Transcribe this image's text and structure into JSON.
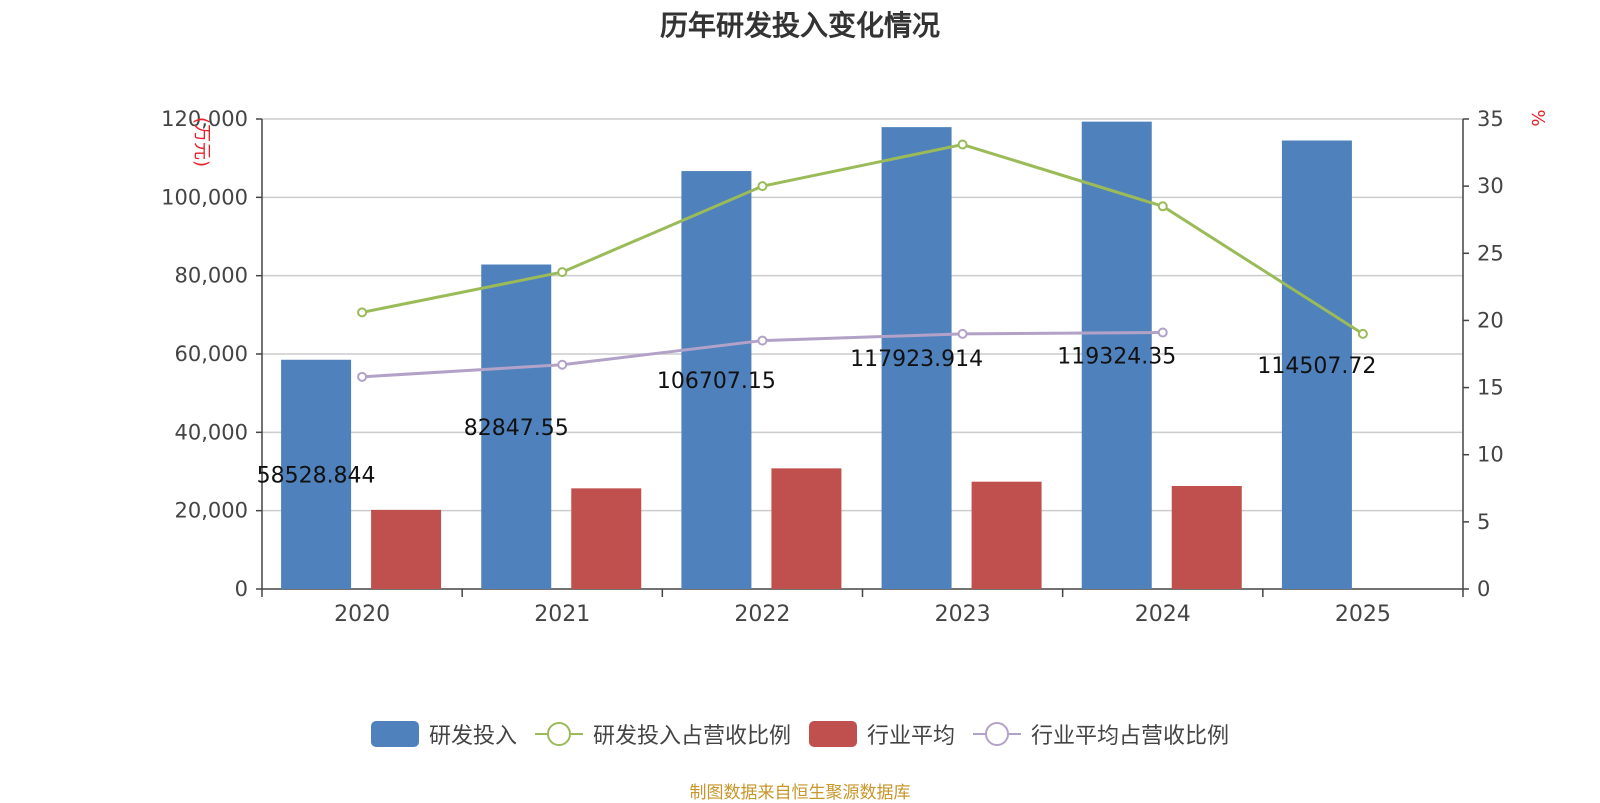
{
  "chart_data": {
    "type": "bar",
    "title": "历年研发投入变化情况",
    "categories": [
      "2020",
      "2021",
      "2022",
      "2023",
      "2024",
      "2025"
    ],
    "left_axis": {
      "unit": "(万元)",
      "ylim": [
        0,
        120000
      ],
      "ticks": [
        "0",
        "20,000",
        "40,000",
        "60,000",
        "80,000",
        "100,000",
        "120,000"
      ]
    },
    "right_axis": {
      "unit": "%",
      "ylim": [
        0,
        35
      ],
      "ticks": [
        "0",
        "5",
        "10",
        "15",
        "20",
        "25",
        "30",
        "35"
      ]
    },
    "series": [
      {
        "name": "研发投入",
        "type": "bar",
        "axis": "left",
        "color": "#4f81bd",
        "values": [
          58528.844,
          82847.55,
          106707.15,
          117923.914,
          119324.35,
          114507.72
        ],
        "labels": [
          "58528.844",
          "82847.55",
          "106707.15",
          "117923.914",
          "119324.35",
          "114507.72"
        ]
      },
      {
        "name": "研发投入占营收比例",
        "type": "line",
        "axis": "right",
        "color": "#9bbb59",
        "values": [
          20.6,
          23.6,
          30.0,
          33.1,
          28.5,
          19.0
        ]
      },
      {
        "name": "行业平均",
        "type": "bar",
        "axis": "left",
        "color": "#c0504d",
        "values": [
          20200,
          25700,
          30800,
          27400,
          26300,
          null
        ]
      },
      {
        "name": "行业平均占营收比例",
        "type": "line",
        "axis": "right",
        "color": "#b3a2c7",
        "values": [
          15.8,
          16.7,
          18.5,
          19.0,
          19.1,
          null
        ]
      }
    ]
  },
  "legend": [
    {
      "name": "研发投入",
      "kind": "bar",
      "color": "#4f81bd"
    },
    {
      "name": "研发投入占营收比例",
      "kind": "line",
      "color": "#9bbb59"
    },
    {
      "name": "行业平均",
      "kind": "bar",
      "color": "#c0504d"
    },
    {
      "name": "行业平均占营收比例",
      "kind": "line",
      "color": "#b3a2c7"
    }
  ],
  "source": "制图数据来自恒生聚源数据库"
}
